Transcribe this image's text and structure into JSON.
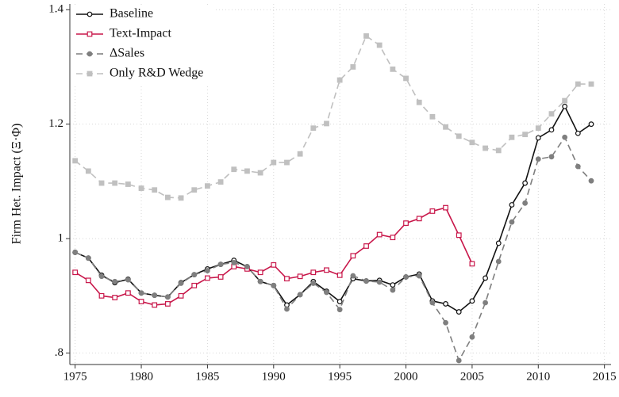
{
  "chart_data": {
    "type": "line",
    "y_label": "Firm Het. Impact (Ξ·Φ)",
    "x": [
      1975,
      1976,
      1977,
      1978,
      1979,
      1980,
      1981,
      1982,
      1983,
      1984,
      1985,
      1986,
      1987,
      1988,
      1989,
      1990,
      1991,
      1992,
      1993,
      1994,
      1995,
      1996,
      1997,
      1998,
      1999,
      2000,
      2001,
      2002,
      2003,
      2004,
      2005,
      2006,
      2007,
      2008,
      2009,
      2010,
      2011,
      2012,
      2013,
      2014
    ],
    "series": [
      {
        "name": "Baseline",
        "color": "#111111",
        "dashed": false,
        "marker": "hollow-circle",
        "values": [
          0.976,
          0.966,
          0.936,
          0.923,
          0.929,
          0.905,
          0.901,
          0.898,
          0.923,
          0.937,
          0.947,
          0.955,
          0.962,
          0.951,
          0.925,
          0.918,
          0.884,
          0.902,
          0.925,
          0.908,
          0.89,
          0.93,
          0.926,
          0.927,
          0.919,
          0.933,
          0.938,
          0.891,
          0.886,
          0.872,
          0.891,
          0.931,
          0.992,
          1.059,
          1.097,
          1.176,
          1.19,
          1.231,
          1.184,
          1.2
        ]
      },
      {
        "name": "Text-Impact",
        "color": "#c8174a",
        "dashed": false,
        "marker": "hollow-square",
        "values": [
          0.941,
          0.927,
          0.9,
          0.897,
          0.905,
          0.89,
          0.884,
          0.886,
          0.9,
          0.918,
          0.931,
          0.933,
          0.951,
          0.947,
          0.941,
          0.954,
          0.93,
          0.934,
          0.941,
          0.945,
          0.936,
          0.97,
          0.987,
          1.007,
          1.002,
          1.027,
          1.035,
          1.048,
          1.054,
          1.006,
          0.956,
          null,
          null,
          null,
          null,
          null,
          null,
          null,
          null,
          null
        ]
      },
      {
        "name": "ΔSales",
        "color": "#7f7f7f",
        "dashed": true,
        "marker": "filled-circle",
        "values": [
          0.976,
          0.966,
          0.934,
          0.925,
          0.928,
          0.905,
          0.901,
          0.898,
          0.922,
          0.937,
          0.944,
          0.955,
          0.958,
          0.951,
          0.925,
          0.918,
          0.877,
          0.902,
          0.922,
          0.906,
          0.876,
          0.935,
          0.926,
          0.924,
          0.91,
          0.933,
          0.935,
          0.888,
          0.853,
          0.787,
          0.828,
          0.888,
          0.96,
          1.029,
          1.062,
          1.139,
          1.143,
          1.177,
          1.126,
          1.101
        ]
      },
      {
        "name": "Only R&D Wedge",
        "color": "#c0c0c0",
        "dashed": true,
        "marker": "filled-square",
        "values": [
          1.136,
          1.118,
          1.097,
          1.097,
          1.095,
          1.088,
          1.085,
          1.072,
          1.071,
          1.085,
          1.092,
          1.099,
          1.121,
          1.118,
          1.115,
          1.133,
          1.133,
          1.148,
          1.193,
          1.201,
          1.277,
          1.3,
          1.354,
          1.338,
          1.296,
          1.28,
          1.238,
          1.213,
          1.195,
          1.179,
          1.168,
          1.158,
          1.154,
          1.177,
          1.182,
          1.193,
          1.218,
          1.241,
          1.27,
          1.27
        ]
      }
    ],
    "xlim": [
      1974.6,
      2015.5
    ],
    "xticks": [
      1975,
      1980,
      1985,
      1990,
      1995,
      2000,
      2005,
      2010,
      2015
    ],
    "ylim": [
      0.78,
      1.41
    ],
    "yticks": [
      {
        "value": 0.8,
        "label": ".8"
      },
      1,
      1.2,
      1.4
    ],
    "grid": true,
    "legend": "upper left"
  }
}
